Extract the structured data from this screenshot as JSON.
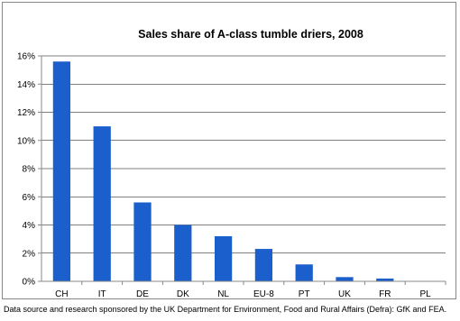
{
  "chart_data": {
    "type": "bar",
    "title": "Sales share of A-class tumble driers, 2008",
    "xlabel": "",
    "ylabel": "",
    "categories": [
      "CH",
      "IT",
      "DE",
      "DK",
      "NL",
      "EU-8",
      "PT",
      "UK",
      "FR",
      "PL"
    ],
    "values": [
      15.6,
      11.0,
      5.6,
      4.0,
      3.2,
      2.3,
      1.2,
      0.3,
      0.2,
      0.0
    ],
    "ylim": [
      0,
      16
    ],
    "yticks": [
      0,
      2,
      4,
      6,
      8,
      10,
      12,
      14,
      16
    ],
    "ytick_labels": [
      "0%",
      "2%",
      "4%",
      "6%",
      "8%",
      "10%",
      "12%",
      "14%",
      "16%"
    ],
    "grid": true,
    "legend": "none",
    "bar_color": "#1a5fcc"
  },
  "footnote": "Data source and research sponsored by the UK Department for Environment, Food and Rural Affairs (Defra): GfK and FEA."
}
